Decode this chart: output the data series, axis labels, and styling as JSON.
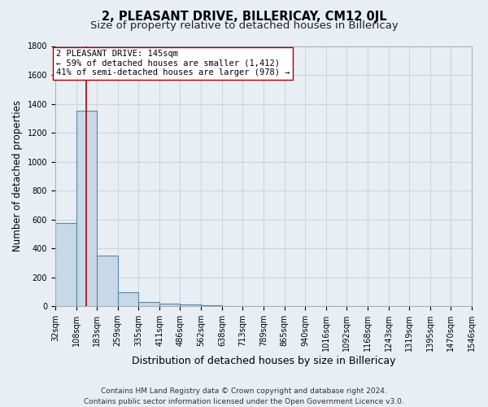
{
  "title": "2, PLEASANT DRIVE, BILLERICAY, CM12 0JL",
  "subtitle": "Size of property relative to detached houses in Billericay",
  "xlabel": "Distribution of detached houses by size in Billericay",
  "ylabel": "Number of detached properties",
  "bin_edges": [
    32,
    108,
    183,
    259,
    335,
    411,
    486,
    562,
    638,
    713,
    789,
    865,
    940,
    1016,
    1092,
    1168,
    1243,
    1319,
    1395,
    1470,
    1546
  ],
  "bar_heights": [
    575,
    1350,
    350,
    95,
    30,
    20,
    15,
    5,
    0,
    0,
    0,
    0,
    0,
    0,
    0,
    0,
    0,
    0,
    0,
    0
  ],
  "bar_color": "#c8d8e8",
  "bar_edgecolor": "#5588aa",
  "bar_linewidth": 0.8,
  "property_size": 145,
  "red_line_color": "#aa0000",
  "annotation_line1": "2 PLEASANT DRIVE: 145sqm",
  "annotation_line2": "← 59% of detached houses are smaller (1,412)",
  "annotation_line3": "41% of semi-detached houses are larger (978) →",
  "annotation_bbox_color": "white",
  "annotation_bbox_edgecolor": "#aa0000",
  "ylim": [
    0,
    1800
  ],
  "yticks": [
    0,
    200,
    400,
    600,
    800,
    1000,
    1200,
    1400,
    1600,
    1800
  ],
  "grid_color": "#c8cdd8",
  "bg_color": "#e8eef4",
  "footer_line1": "Contains HM Land Registry data © Crown copyright and database right 2024.",
  "footer_line2": "Contains public sector information licensed under the Open Government Licence v3.0.",
  "title_fontsize": 10.5,
  "subtitle_fontsize": 9.5,
  "xlabel_fontsize": 9,
  "ylabel_fontsize": 8.5,
  "tick_fontsize": 7,
  "annotation_fontsize": 7.5,
  "footer_fontsize": 6.5
}
